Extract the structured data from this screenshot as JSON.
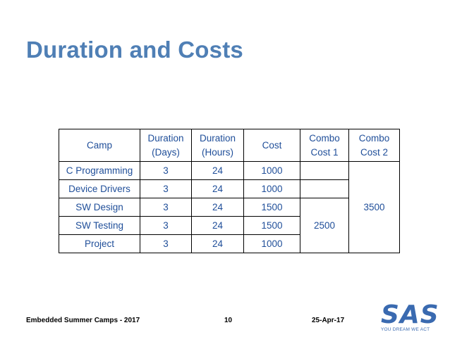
{
  "slide": {
    "title": "Duration and Costs"
  },
  "table": {
    "headers": {
      "camp": "Camp",
      "days_line1": "Duration",
      "days_line2": "(Days)",
      "hours_line1": "Duration",
      "hours_line2": "(Hours)",
      "cost": "Cost",
      "combo1_line1": "Combo",
      "combo1_line2": "Cost 1",
      "combo2_line1": "Combo",
      "combo2_line2": "Cost 2"
    },
    "rows": [
      {
        "camp": "C Programming",
        "days": "3",
        "hours": "24",
        "cost": "1000"
      },
      {
        "camp": "Device Drivers",
        "days": "3",
        "hours": "24",
        "cost": "1000"
      },
      {
        "camp": "SW Design",
        "days": "3",
        "hours": "24",
        "cost": "1500"
      },
      {
        "camp": "SW Testing",
        "days": "3",
        "hours": "24",
        "cost": "1500"
      },
      {
        "camp": "Project",
        "days": "3",
        "hours": "24",
        "cost": "1000"
      }
    ],
    "combo_cost_1": "2500",
    "combo_cost_2": "3500"
  },
  "footer": {
    "left": "Embedded Summer Camps - 2017",
    "page": "10",
    "date": "25-Apr-17"
  },
  "logo": {
    "letters": "SAS",
    "tagline": "YOU DREAM WE ACT",
    "color": "#3a6ab0"
  }
}
